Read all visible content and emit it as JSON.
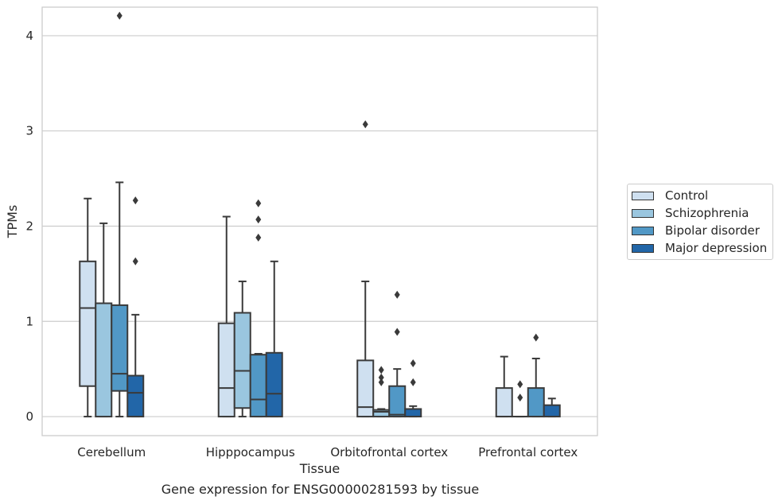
{
  "chart_data": {
    "type": "box",
    "xlabel": "Tissue",
    "ylabel": "TPMs",
    "ylim": [
      -0.2,
      4.3
    ],
    "yticks": [
      0,
      1,
      2,
      3,
      4
    ],
    "grid": true,
    "legend_position": "right",
    "categories": [
      "Cerebellum",
      "Hipppocampus",
      "Orbitofrontal cortex",
      "Prefrontal cortex"
    ],
    "series": [
      {
        "name": "Control",
        "color": "#cfe0f0",
        "boxes": [
          {
            "whisker_low": 0.0,
            "q1": 0.32,
            "median": 1.14,
            "q3": 1.63,
            "whisker_high": 2.29,
            "outliers": []
          },
          {
            "whisker_low": 0.0,
            "q1": 0.0,
            "median": 0.3,
            "q3": 0.98,
            "whisker_high": 2.1,
            "outliers": []
          },
          {
            "whisker_low": 0.0,
            "q1": 0.0,
            "median": 0.1,
            "q3": 0.59,
            "whisker_high": 1.42,
            "outliers": [
              3.07
            ]
          },
          {
            "whisker_low": 0.0,
            "q1": 0.0,
            "median": 0.0,
            "q3": 0.3,
            "whisker_high": 0.63,
            "outliers": []
          }
        ]
      },
      {
        "name": "Schizophrenia",
        "color": "#9ac6df",
        "boxes": [
          {
            "whisker_low": 0.0,
            "q1": 0.0,
            "median": 1.19,
            "q3": 1.19,
            "whisker_high": 2.03,
            "outliers": []
          },
          {
            "whisker_low": 0.0,
            "q1": 0.09,
            "median": 0.48,
            "q3": 1.09,
            "whisker_high": 1.42,
            "outliers": []
          },
          {
            "whisker_low": 0.0,
            "q1": 0.0,
            "median": 0.05,
            "q3": 0.07,
            "whisker_high": 0.08,
            "outliers": [
              0.36,
              0.41,
              0.49
            ]
          },
          {
            "whisker_low": 0.0,
            "q1": 0.0,
            "median": 0.0,
            "q3": 0.0,
            "whisker_high": 0.0,
            "outliers": [
              0.2,
              0.34
            ]
          }
        ]
      },
      {
        "name": "Bipolar disorder",
        "color": "#5198c6",
        "boxes": [
          {
            "whisker_low": 0.0,
            "q1": 0.27,
            "median": 0.45,
            "q3": 1.17,
            "whisker_high": 2.46,
            "outliers": [
              4.21
            ]
          },
          {
            "whisker_low": 0.0,
            "q1": 0.0,
            "median": 0.18,
            "q3": 0.65,
            "whisker_high": 0.66,
            "outliers": [
              1.88,
              2.07,
              2.24
            ]
          },
          {
            "whisker_low": 0.0,
            "q1": 0.0,
            "median": 0.02,
            "q3": 0.32,
            "whisker_high": 0.5,
            "outliers": [
              0.89,
              1.28
            ]
          },
          {
            "whisker_low": 0.0,
            "q1": 0.0,
            "median": 0.0,
            "q3": 0.3,
            "whisker_high": 0.61,
            "outliers": [
              0.83
            ]
          }
        ]
      },
      {
        "name": "Major depression",
        "color": "#2266a8",
        "boxes": [
          {
            "whisker_low": 0.0,
            "q1": 0.0,
            "median": 0.25,
            "q3": 0.43,
            "whisker_high": 1.07,
            "outliers": [
              1.63,
              2.27
            ]
          },
          {
            "whisker_low": 0.0,
            "q1": 0.0,
            "median": 0.24,
            "q3": 0.67,
            "whisker_high": 1.63,
            "outliers": []
          },
          {
            "whisker_low": 0.0,
            "q1": 0.0,
            "median": 0.0,
            "q3": 0.08,
            "whisker_high": 0.11,
            "outliers": [
              0.36,
              0.56
            ]
          },
          {
            "whisker_low": 0.0,
            "q1": 0.0,
            "median": 0.0,
            "q3": 0.12,
            "whisker_high": 0.19,
            "outliers": []
          }
        ]
      }
    ]
  },
  "caption": "Gene expression for ENSG00000281593 by tissue"
}
